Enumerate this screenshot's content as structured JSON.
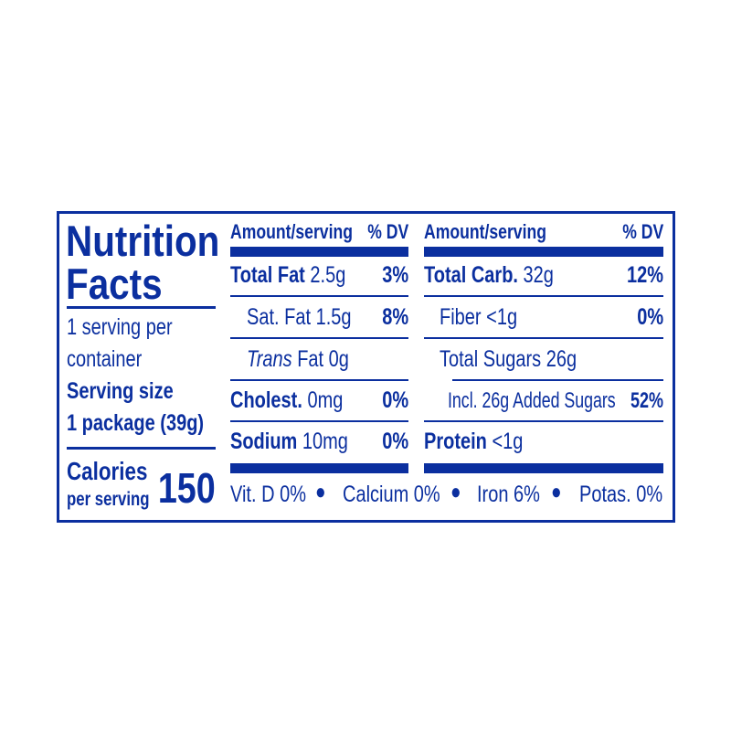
{
  "title_line1": "Nutrition",
  "title_line2": "Facts",
  "servings_line1": "1 serving per",
  "servings_line2": "container",
  "serving_size_label": "Serving size",
  "serving_size_value": "1 package (39g)",
  "calories_label": "Calories",
  "calories_sub": "per serving",
  "calories_value": "150",
  "left_table": {
    "header_amount": "Amount/serving",
    "header_dv": "% DV",
    "rows": [
      {
        "name": "Total Fat",
        "amount": "2.5g",
        "dv": "3%"
      },
      {
        "name": "Sat. Fat",
        "amount": "1.5g",
        "dv": "8%"
      },
      {
        "name": "Trans",
        "name_rest": "Fat",
        "amount": "0g",
        "dv": ""
      },
      {
        "name": "Cholest.",
        "amount": "0mg",
        "dv": "0%"
      },
      {
        "name": "Sodium",
        "amount": "10mg",
        "dv": "0%"
      }
    ]
  },
  "right_table": {
    "header_amount": "Amount/serving",
    "header_dv": "% DV",
    "rows": [
      {
        "name": "Total Carb.",
        "amount": "32g",
        "dv": "12%"
      },
      {
        "name": "Fiber",
        "amount": "<1g",
        "dv": "0%"
      },
      {
        "name": "Total Sugars",
        "amount": "26g",
        "dv": ""
      },
      {
        "name": "Incl. 26g Added Sugars",
        "amount": "",
        "dv": "52%"
      },
      {
        "name": "Protein",
        "amount": "<1g",
        "dv": ""
      }
    ]
  },
  "vitamins": [
    "Vit. D 0%",
    "Calcium 0%",
    "Iron 6%",
    "Potas. 0%"
  ],
  "colors": {
    "ink": "#0b2f9f",
    "background": "#ffffff"
  }
}
